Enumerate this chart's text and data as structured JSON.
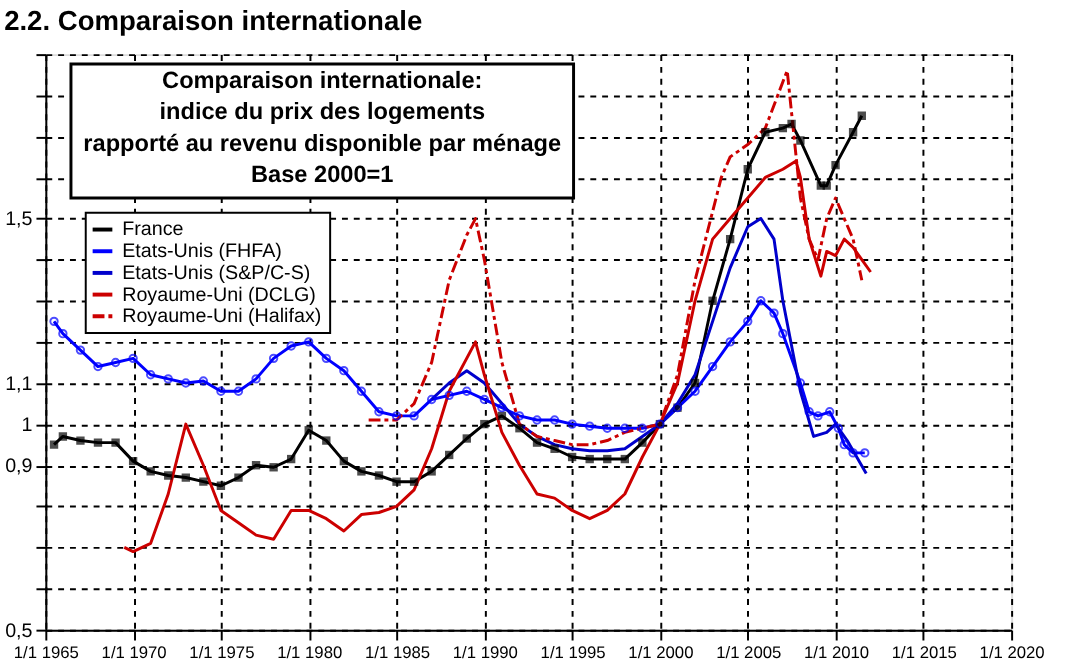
{
  "chart_data": {
    "type": "line",
    "title": "2.2. Comparaison internationale",
    "subtitle": [
      "Comparaison internationale:",
      "indice du prix des logements",
      "rapporté au revenu disponible par ménage",
      "Base 2000=1"
    ],
    "series": [
      {
        "name": "France",
        "color": "#000000",
        "marker": "square",
        "line_style": "solid",
        "x": [
          "1965-07",
          "1966",
          "1967",
          "1968",
          "1969",
          "1970",
          "1971",
          "1972",
          "1973",
          "1974",
          "1975",
          "1976",
          "1977",
          "1978",
          "1979",
          "1980",
          "1981",
          "1982",
          "1983",
          "1984",
          "1985",
          "1986",
          "1987",
          "1988",
          "1989",
          "1990",
          "1991",
          "1992",
          "1993",
          "1994",
          "1995",
          "1996",
          "1997",
          "1998",
          "1999",
          "2000",
          "2001",
          "2002",
          "2003",
          "2004",
          "2005",
          "2006",
          "2007",
          "2007-07",
          "2008",
          "2009-03",
          "2009-07",
          "2010",
          "2011",
          "2011-07"
        ],
        "values": [
          0.95,
          0.97,
          0.96,
          0.955,
          0.955,
          0.91,
          0.885,
          0.875,
          0.87,
          0.86,
          0.85,
          0.87,
          0.9,
          0.895,
          0.915,
          0.985,
          0.96,
          0.91,
          0.885,
          0.875,
          0.86,
          0.86,
          0.885,
          0.925,
          0.965,
          1.0,
          1.02,
          0.99,
          0.955,
          0.94,
          0.92,
          0.915,
          0.915,
          0.915,
          0.955,
          1.0,
          1.04,
          1.1,
          1.3,
          1.45,
          1.62,
          1.71,
          1.72,
          1.73,
          1.69,
          1.58,
          1.58,
          1.63,
          1.71,
          1.75
        ]
      },
      {
        "name": "Etats-Unis (FHFA)",
        "color": "#0000ff",
        "marker": "circle",
        "line_style": "solid",
        "x": [
          "1965-07",
          "1966",
          "1967",
          "1968",
          "1969",
          "1970",
          "1971",
          "1972",
          "1973",
          "1974",
          "1975",
          "1976",
          "1977",
          "1978",
          "1979",
          "1980",
          "1981",
          "1982",
          "1983",
          "1984",
          "1985",
          "1986",
          "1987",
          "1988",
          "1989",
          "1990",
          "1991",
          "1992",
          "1993",
          "1994",
          "1995",
          "1996",
          "1997",
          "1998",
          "1999",
          "2000",
          "2001",
          "2002",
          "2003",
          "2004",
          "2005",
          "2005-10",
          "2006-07",
          "2007",
          "2008",
          "2008-07",
          "2009",
          "2009-09",
          "2010-03",
          "2010-07",
          "2011",
          "2011-09"
        ],
        "values": [
          1.25,
          1.22,
          1.18,
          1.14,
          1.15,
          1.16,
          1.12,
          1.11,
          1.1,
          1.105,
          1.08,
          1.08,
          1.11,
          1.16,
          1.19,
          1.2,
          1.16,
          1.13,
          1.08,
          1.03,
          1.02,
          1.02,
          1.06,
          1.07,
          1.08,
          1.06,
          1.04,
          1.02,
          1.01,
          1.01,
          1.0,
          0.995,
          0.99,
          0.99,
          0.99,
          1.0,
          1.04,
          1.08,
          1.14,
          1.2,
          1.25,
          1.3,
          1.27,
          1.22,
          1.1,
          1.03,
          1.02,
          1.03,
          0.99,
          0.95,
          0.93,
          0.93
        ]
      },
      {
        "name": "Etats-Unis (S&P/C-S)",
        "color": "#0000cc",
        "marker": "none",
        "line_style": "solid",
        "x": [
          "1987",
          "1988",
          "1989",
          "1990",
          "1991",
          "1992",
          "1993",
          "1994",
          "1995",
          "1996",
          "1997",
          "1998",
          "1999",
          "2000",
          "2001",
          "2002",
          "2003",
          "2004",
          "2005",
          "2005-10",
          "2006-07",
          "2007",
          "2008",
          "2008-10",
          "2009-07",
          "2010",
          "2010-09",
          "2011-10"
        ],
        "values": [
          1.06,
          1.1,
          1.13,
          1.1,
          1.05,
          1.0,
          0.97,
          0.95,
          0.94,
          0.935,
          0.935,
          0.94,
          0.97,
          1.0,
          1.05,
          1.12,
          1.25,
          1.38,
          1.48,
          1.5,
          1.45,
          1.3,
          1.08,
          0.97,
          0.98,
          1.0,
          0.96,
          0.88
        ]
      },
      {
        "name": "Royaume-Uni (DCLG)",
        "color": "#cc0000",
        "marker": "none",
        "line_style": "solid",
        "x": [
          "1969-07",
          "1970",
          "1971",
          "1972",
          "1973",
          "1974",
          "1975",
          "1976",
          "1977",
          "1978",
          "1979",
          "1980",
          "1981",
          "1982",
          "1983",
          "1984",
          "1985",
          "1986",
          "1987",
          "1988",
          "1989-07",
          "1990",
          "1991",
          "1992",
          "1993",
          "1994",
          "1995",
          "1996",
          "1997",
          "1998",
          "1999",
          "2000",
          "2001",
          "2002",
          "2003",
          "2004",
          "2005",
          "2006",
          "2007",
          "2007-10",
          "2008",
          "2008-07",
          "2009-03",
          "2009-07",
          "2010",
          "2010-07",
          "2011",
          "2011-07",
          "2012"
        ],
        "values": [
          0.7,
          0.69,
          0.71,
          0.83,
          1.0,
          0.9,
          0.79,
          0.76,
          0.73,
          0.72,
          0.79,
          0.79,
          0.77,
          0.74,
          0.78,
          0.785,
          0.8,
          0.84,
          0.94,
          1.08,
          1.2,
          1.12,
          0.98,
          0.9,
          0.83,
          0.82,
          0.79,
          0.77,
          0.79,
          0.83,
          0.92,
          1.0,
          1.1,
          1.3,
          1.45,
          1.5,
          1.55,
          1.6,
          1.62,
          1.64,
          1.6,
          1.45,
          1.36,
          1.42,
          1.41,
          1.45,
          1.43,
          1.4,
          1.37
        ]
      },
      {
        "name": "Royaume-Uni (Halifax)",
        "color": "#cc0000",
        "marker": "none",
        "line_style": "dashed",
        "x": [
          "1983-06",
          "1985",
          "1986",
          "1987",
          "1988",
          "1989",
          "1989-07",
          "1990",
          "1991",
          "1992",
          "1993",
          "1994",
          "1995",
          "1996",
          "1997",
          "1998",
          "1999",
          "2000",
          "2001",
          "2002",
          "2003-07",
          "2004",
          "2005",
          "2006",
          "2007-04",
          "2008",
          "2008-07",
          "2009",
          "2009-07",
          "2010",
          "2010-07",
          "2011",
          "2011-07"
        ],
        "values": [
          1.01,
          1.01,
          1.05,
          1.15,
          1.35,
          1.46,
          1.5,
          1.4,
          1.15,
          1.0,
          0.97,
          0.96,
          0.95,
          0.95,
          0.96,
          0.98,
          0.99,
          1.0,
          1.12,
          1.35,
          1.6,
          1.65,
          1.68,
          1.72,
          1.86,
          1.55,
          1.45,
          1.4,
          1.5,
          1.55,
          1.5,
          1.45,
          1.35
        ]
      }
    ],
    "xlim": [
      "1965",
      "2020"
    ],
    "xticks": [
      {
        "value": "1965",
        "label": "1/1 1965"
      },
      {
        "value": "1970",
        "label": "1/1 1970"
      },
      {
        "value": "1975",
        "label": "1/1 1975"
      },
      {
        "value": "1980",
        "label": "1/1 1980"
      },
      {
        "value": "1985",
        "label": "1/1 1985"
      },
      {
        "value": "1990",
        "label": "1/1 1990"
      },
      {
        "value": "1995",
        "label": "1/1 1995"
      },
      {
        "value": "2000",
        "label": "1/1 2000"
      },
      {
        "value": "2005",
        "label": "1/1 2005"
      },
      {
        "value": "2010",
        "label": "1/1 2010"
      },
      {
        "value": "2015",
        "label": "1/1 2015"
      },
      {
        "value": "2020",
        "label": "1/1 2020"
      }
    ],
    "ylim": [
      0.5,
      1.9
    ],
    "yticks": [
      {
        "value": 0.5,
        "label": "0,5"
      },
      {
        "value": 0.6,
        "label": null
      },
      {
        "value": 0.7,
        "label": null
      },
      {
        "value": 0.8,
        "label": null
      },
      {
        "value": 0.9,
        "label": "0,9"
      },
      {
        "value": 1.0,
        "label": "1"
      },
      {
        "value": 1.1,
        "label": "1,1"
      },
      {
        "value": 1.2,
        "label": null
      },
      {
        "value": 1.3,
        "label": null
      },
      {
        "value": 1.4,
        "label": null
      },
      {
        "value": 1.5,
        "label": "1,5"
      },
      {
        "value": 1.6,
        "label": null
      },
      {
        "value": 1.7,
        "label": null
      },
      {
        "value": 1.8,
        "label": null
      },
      {
        "value": 1.9,
        "label": null
      }
    ],
    "grid": true,
    "legend": "top left"
  }
}
